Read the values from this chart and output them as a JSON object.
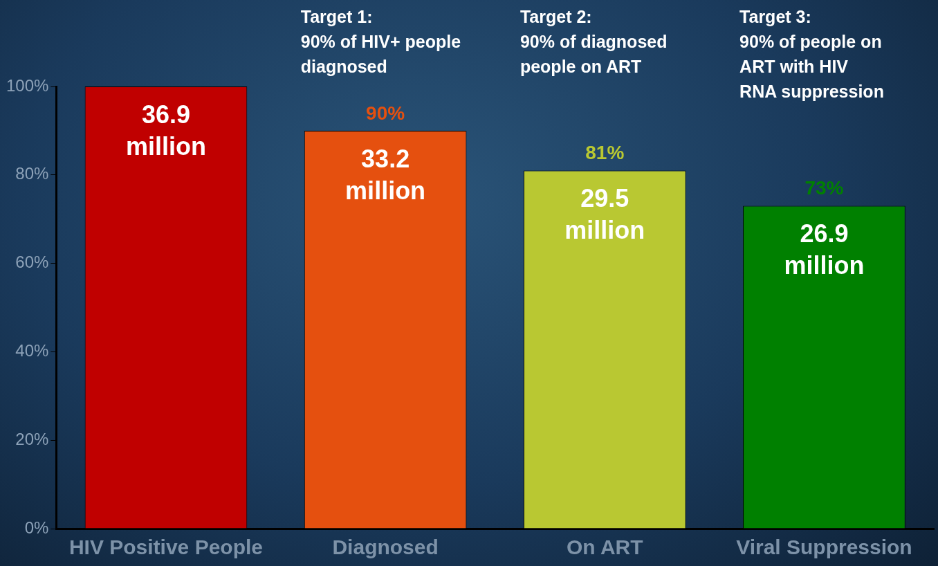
{
  "chart_data": {
    "type": "bar",
    "categories": [
      "HIV Positive People",
      "Diagnosed",
      "On ART",
      "Viral Suppression"
    ],
    "values": [
      100,
      90,
      81,
      73
    ],
    "colors": [
      "#c00000",
      "#e5500f",
      "#b9c832",
      "#008000"
    ],
    "value_labels": [
      null,
      "90%",
      "81%",
      "73%"
    ],
    "ylim": [
      0,
      100
    ],
    "yticks": [
      {
        "value": 0,
        "label": "0%"
      },
      {
        "value": 20,
        "label": "20%"
      },
      {
        "value": 40,
        "label": "40%"
      },
      {
        "value": 60,
        "label": "60%"
      },
      {
        "value": 80,
        "label": "80%"
      },
      {
        "value": 100,
        "label": "100%"
      }
    ],
    "grid": false,
    "legend": false,
    "annotations": [
      "36.9\nmillion",
      "33.2\nmillion",
      "29.5\nmillion",
      "26.9\nmillion",
      "Target 1:\n90% of HIV+ people\ndiagnosed",
      "Target 2:\n90% of diagnosed\npeople on ART",
      "Target 3:\n90% of people on\nART with HIV\nRNA suppression"
    ]
  }
}
